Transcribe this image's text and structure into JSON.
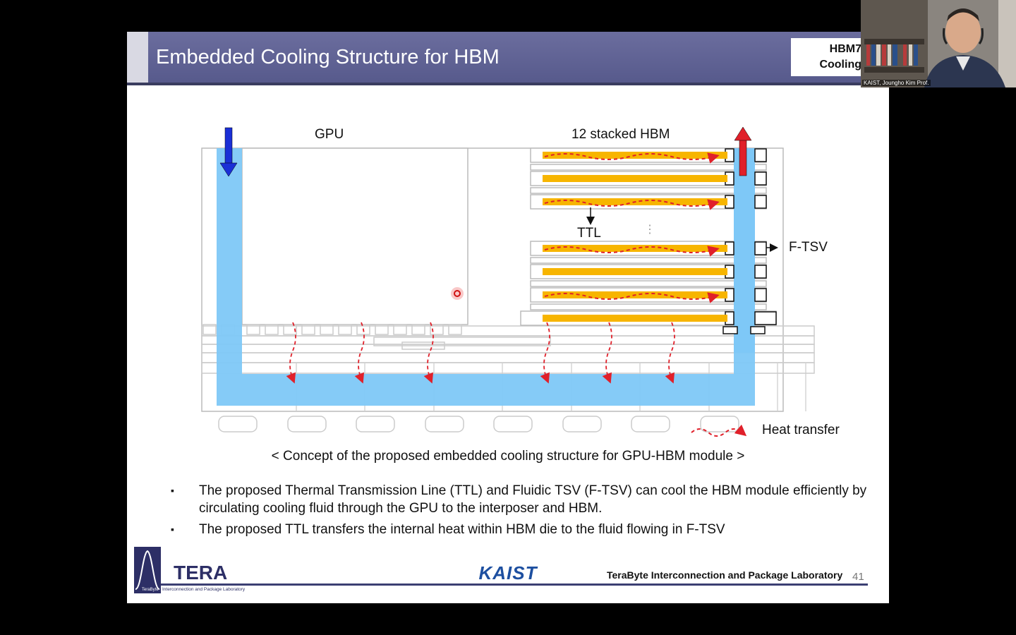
{
  "slide": {
    "title": "Embedded Cooling Structure for HBM",
    "badge_line1": "HBM7",
    "badge_line2": "Cooling",
    "diagram": {
      "label_gpu": "GPU",
      "label_hbm": "12 stacked HBM",
      "label_ttl": "TTL",
      "label_ftsv": "F-TSV",
      "legend_heat": "Heat transfer"
    },
    "caption": "< Concept of the proposed embedded cooling structure for GPU-HBM module >",
    "bullets": [
      "The proposed Thermal Transmission Line (TTL) and Fluidic TSV (F-TSV) can cool the HBM module efficiently by circulating cooling fluid through the GPU to the interposer and HBM.",
      "The proposed TTL transfers the internal heat within HBM die to the fluid flowing in F-TSV"
    ],
    "footer": {
      "logo_text": "TERA",
      "logo_subtext": "Interconnection and Package Laboratory",
      "logo_small": "TeraByte",
      "kaist": "KAIST",
      "lab_name": "TeraByte Interconnection and Package Laboratory",
      "page_number": "41"
    }
  },
  "webcam": {
    "caption": "KAIST, Joungho Kim Prof."
  },
  "colors": {
    "fluid": "#7ec8f7",
    "ttl": "#f7b500",
    "heat_arrow": "#e0202a",
    "inlet_arrow": "#1a2fd6",
    "outlet_arrow": "#e0202a",
    "title_bar": "#5f6294"
  }
}
